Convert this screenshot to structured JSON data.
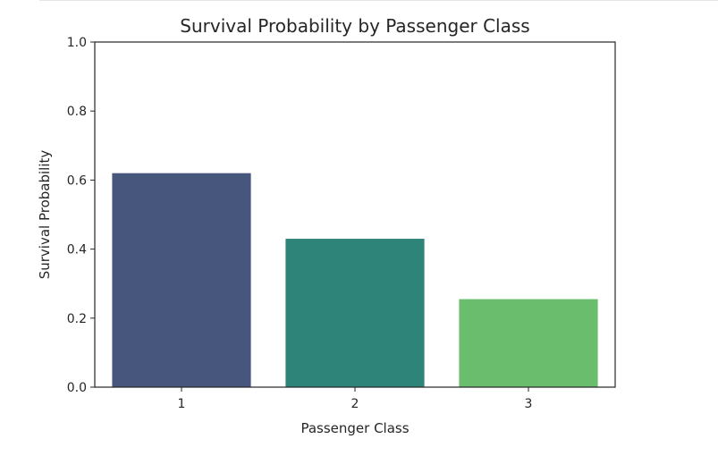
{
  "chart_data": {
    "type": "bar",
    "title": "Survival Probability by Passenger Class",
    "xlabel": "Passenger Class",
    "ylabel": "Survival Probability",
    "categories": [
      "1",
      "2",
      "3"
    ],
    "values": [
      0.62,
      0.43,
      0.255
    ],
    "colors": [
      "#46567c",
      "#2f847a",
      "#6abd6c"
    ],
    "ylim": [
      0,
      1.0
    ],
    "yticks": [
      "0.0",
      "0.2",
      "0.4",
      "0.6",
      "0.8",
      "1.0"
    ],
    "grid": false,
    "legend": "none"
  }
}
